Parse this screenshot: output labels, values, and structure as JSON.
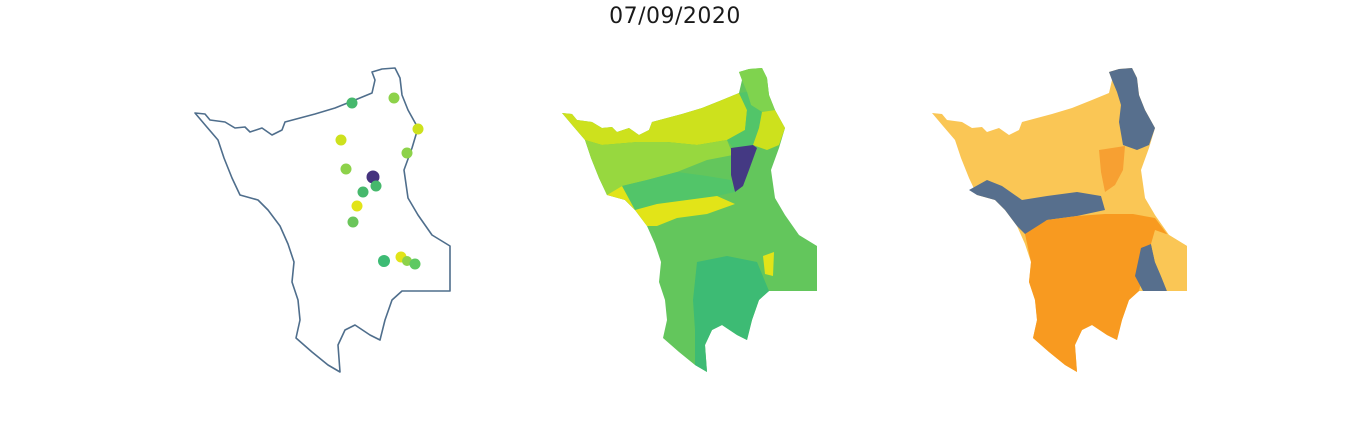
{
  "title": "07/09/2020",
  "colors": {
    "outline": "#4f6e8c",
    "points": [
      "#46b86c",
      "#8dd24a",
      "#cde11d",
      "#6ac55a",
      "#45337e",
      "#3dbb74",
      "#e2e418",
      "#5ec962"
    ],
    "panel2": [
      "#cde11d",
      "#97d83f",
      "#7fd34e",
      "#52c569",
      "#3dbb74",
      "#443983",
      "#e2e418",
      "#63c65c"
    ],
    "panel3": [
      "#fac655",
      "#576f8d",
      "#f89a20",
      "#f7a032"
    ]
  }
}
